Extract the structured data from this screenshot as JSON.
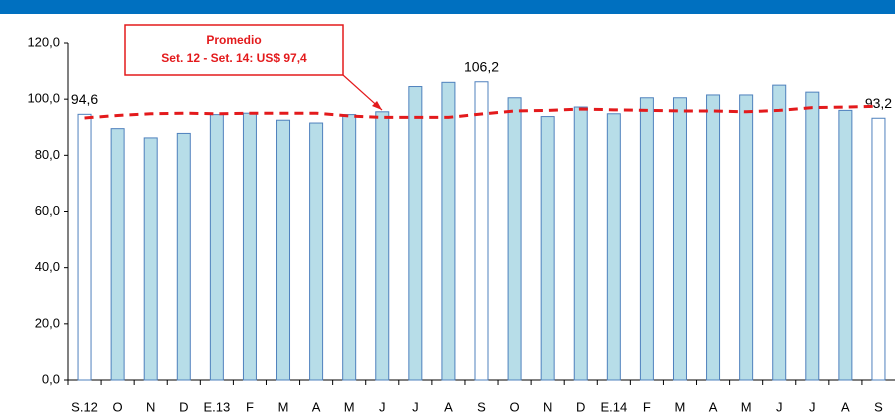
{
  "chart_data": {
    "type": "bar",
    "categories": [
      "S.12",
      "O",
      "N",
      "D",
      "E.13",
      "F",
      "M",
      "A",
      "M",
      "J",
      "J",
      "A",
      "S",
      "O",
      "N",
      "D",
      "E.14",
      "F",
      "M",
      "A",
      "M",
      "J",
      "J",
      "A",
      "S"
    ],
    "series": [
      {
        "type": "bar",
        "color": "#4f81bd",
        "colors": [
          "#ffffff",
          "#b7dde8",
          "#b7dde8",
          "#b7dde8",
          "#b7dde8",
          "#b7dde8",
          "#b7dde8",
          "#b7dde8",
          "#b7dde8",
          "#b7dde8",
          "#b7dde8",
          "#b7dde8",
          "#ffffff",
          "#b7dde8",
          "#b7dde8",
          "#b7dde8",
          "#b7dde8",
          "#b7dde8",
          "#b7dde8",
          "#b7dde8",
          "#b7dde8",
          "#b7dde8",
          "#b7dde8",
          "#b7dde8",
          "#ffffff"
        ],
        "values": [
          94.6,
          89.5,
          86.2,
          87.8,
          94.5,
          95.0,
          92.5,
          91.5,
          94.5,
          95.5,
          104.5,
          106.0,
          106.2,
          100.5,
          93.8,
          97.2,
          94.8,
          100.5,
          100.5,
          101.5,
          101.5,
          105.0,
          102.5,
          96.0,
          93.2
        ],
        "value_labels": [
          "94,6",
          null,
          null,
          null,
          null,
          null,
          null,
          null,
          null,
          null,
          null,
          null,
          "106,2",
          null,
          null,
          null,
          null,
          null,
          null,
          null,
          null,
          null,
          null,
          null,
          "93,2"
        ]
      },
      {
        "type": "line",
        "color": "#e31a1c",
        "values": [
          93.3,
          94.2,
          94.8,
          95.0,
          94.8,
          95.0,
          95.0,
          95.0,
          94.0,
          93.5,
          93.5,
          93.5,
          94.7,
          95.8,
          96.0,
          96.5,
          96.2,
          96.0,
          95.8,
          95.8,
          95.5,
          96.0,
          97.0,
          97.2,
          97.5
        ]
      }
    ],
    "annotation": [
      "Promedio",
      "Set. 12 - Set. 14: US$ 97,4"
    ],
    "ylim": [
      0,
      120
    ],
    "yticks": [
      {
        "value": 0,
        "label": "0,0"
      },
      {
        "value": 20,
        "label": "20,0"
      },
      {
        "value": 40,
        "label": "40,0"
      },
      {
        "value": 60,
        "label": "60,0"
      },
      {
        "value": 80,
        "label": "80,0"
      },
      {
        "value": 100,
        "label": "100,0"
      },
      {
        "value": 120,
        "label": "120,0"
      }
    ],
    "grid": false
  }
}
